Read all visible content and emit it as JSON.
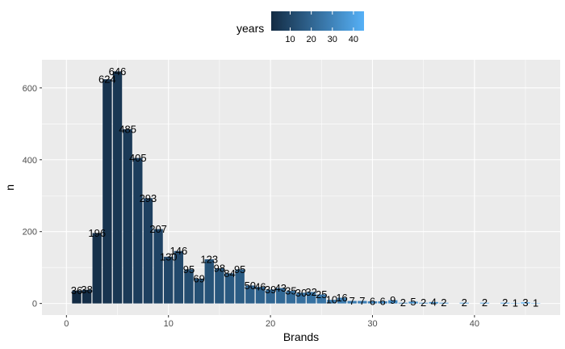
{
  "chart_data": {
    "type": "bar",
    "xlabel": "Brands",
    "ylabel": "n",
    "xlim": [
      -2.4,
      48.4
    ],
    "ylim": [
      -32.3,
      678.3
    ],
    "x_ticks": [
      0,
      10,
      20,
      30,
      40
    ],
    "y_ticks": [
      0,
      200,
      400,
      600
    ],
    "grid": true,
    "legend": {
      "title": "years",
      "placement": "top",
      "type": "colorbar",
      "range": [
        1,
        45
      ],
      "ticks": [
        10,
        20,
        30,
        40
      ],
      "color_low": "#132B43",
      "color_high": "#56B1F7"
    },
    "series": [
      {
        "x": [
          1,
          2,
          3,
          4,
          5,
          6,
          7,
          8,
          9,
          10,
          11,
          12,
          13,
          14,
          15,
          16,
          17,
          18,
          19,
          20,
          21,
          22,
          23,
          24,
          25,
          26,
          27,
          28,
          29,
          30,
          31,
          32,
          33,
          34,
          35,
          36,
          37,
          39,
          41,
          43,
          44,
          45,
          46
        ],
        "values": [
          36,
          38,
          196,
          624,
          646,
          485,
          405,
          293,
          207,
          130,
          146,
          95,
          69,
          123,
          98,
          84,
          95,
          50,
          46,
          39,
          43,
          35,
          30,
          32,
          25,
          10,
          16,
          7,
          7,
          6,
          6,
          9,
          2,
          5,
          2,
          4,
          2,
          2,
          2,
          2,
          1,
          3,
          1
        ],
        "labels": [
          "36",
          "38",
          "196",
          "624",
          "646",
          "485",
          "405",
          "293",
          "207",
          "130",
          "146",
          "95",
          "69",
          "123",
          "98",
          "84",
          "95",
          "50",
          "46",
          "39",
          "43",
          "35",
          "30",
          "32",
          "25",
          "10",
          "16",
          "7",
          "7",
          "6",
          "6",
          "9",
          "2",
          "5",
          "2",
          "4",
          "2",
          "2",
          "2",
          "2",
          "1",
          "3",
          "1"
        ]
      }
    ]
  }
}
